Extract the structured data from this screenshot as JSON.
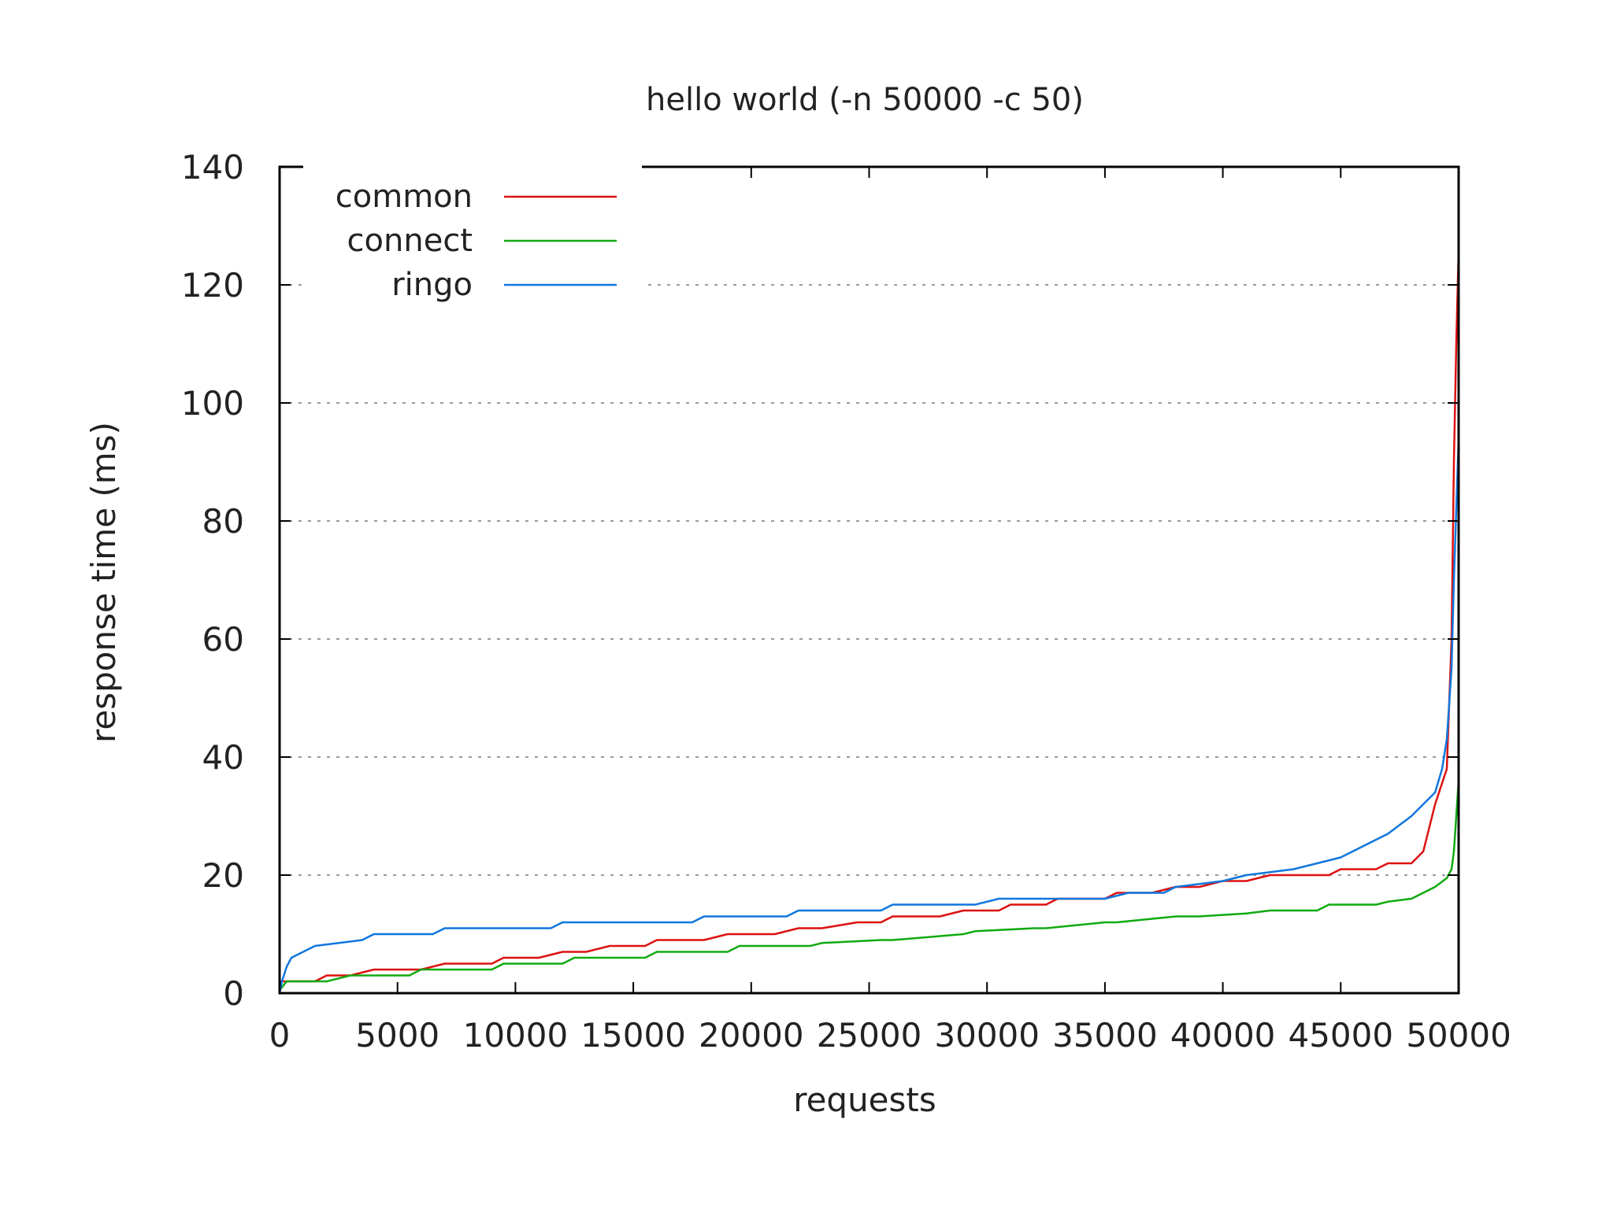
{
  "chart_data": {
    "type": "line",
    "title": "hello world (-n 50000 -c 50)",
    "xlabel": "requests",
    "ylabel": "response time (ms)",
    "xlim": [
      0,
      50000
    ],
    "ylim": [
      0,
      140
    ],
    "xticks": [
      "0",
      "5000",
      "10000",
      "15000",
      "20000",
      "25000",
      "30000",
      "35000",
      "40000",
      "45000",
      "50000"
    ],
    "yticks": [
      "0",
      "20",
      "40",
      "60",
      "80",
      "100",
      "120",
      "140"
    ],
    "grid": "horizontal dotted",
    "legend_position": "top-left",
    "series": [
      {
        "name": "common",
        "color": "#dd1111",
        "x": [
          0,
          1500,
          2000,
          3000,
          4000,
          6000,
          7000,
          9000,
          9500,
          11000,
          12000,
          13000,
          14000,
          15500,
          16000,
          18000,
          19000,
          21000,
          22000,
          23000,
          24500,
          25500,
          26000,
          28000,
          29000,
          30500,
          31000,
          32500,
          33000,
          35000,
          35500,
          37000,
          38000,
          39000,
          40000,
          41000,
          42000,
          43000,
          44500,
          45000,
          46500,
          47000,
          48000,
          48500,
          49000,
          49500,
          49700,
          49800,
          49900,
          50000
        ],
        "y": [
          2,
          2,
          3,
          3,
          4,
          4,
          5,
          5,
          6,
          6,
          7,
          7,
          8,
          8,
          9,
          9,
          10,
          10,
          11,
          11,
          12,
          12,
          13,
          13,
          14,
          14,
          15,
          15,
          16,
          16,
          17,
          17,
          18,
          18,
          19,
          19,
          20,
          20,
          20,
          21,
          21,
          22,
          22,
          24,
          32,
          38,
          60,
          90,
          110,
          126
        ]
      },
      {
        "name": "connect",
        "color": "#11aa11",
        "x": [
          0,
          300,
          2000,
          2500,
          3000,
          5500,
          6000,
          9000,
          9500,
          12000,
          12500,
          15500,
          16000,
          19000,
          19500,
          22500,
          23000,
          25500,
          26000,
          29000,
          29500,
          32000,
          32500,
          35000,
          35500,
          38000,
          39000,
          41000,
          42000,
          44000,
          44500,
          46500,
          47000,
          48000,
          49000,
          49500,
          49700,
          49800,
          49900,
          50000
        ],
        "y": [
          0.5,
          2,
          2,
          2.5,
          3,
          3,
          4,
          4,
          5,
          5,
          6,
          6,
          7,
          7,
          8,
          8,
          8.5,
          9,
          9,
          10,
          10.5,
          11,
          11,
          12,
          12,
          13,
          13,
          13.5,
          14,
          14,
          15,
          15,
          15.5,
          16,
          18,
          19.5,
          21,
          24,
          30,
          36
        ]
      },
      {
        "name": "ringo",
        "color": "#1177dd",
        "x": [
          0,
          100,
          300,
          500,
          1000,
          1500,
          2500,
          3500,
          4000,
          6500,
          7000,
          11500,
          12000,
          17500,
          18000,
          21500,
          22000,
          25500,
          26000,
          29500,
          30500,
          33000,
          35000,
          36000,
          37500,
          38000,
          40000,
          41000,
          43000,
          44000,
          45000,
          46000,
          47000,
          48000,
          49000,
          49300,
          49500,
          49700,
          49800,
          49900,
          50000
        ],
        "y": [
          0,
          2,
          4.5,
          6,
          7,
          8,
          8.5,
          9,
          10,
          10,
          11,
          11,
          12,
          12,
          13,
          13,
          14,
          14,
          15,
          15,
          16,
          16,
          16,
          17,
          17,
          18,
          19,
          20,
          21,
          22,
          23,
          25,
          27,
          30,
          34,
          38,
          43,
          55,
          70,
          82,
          94
        ]
      }
    ]
  }
}
